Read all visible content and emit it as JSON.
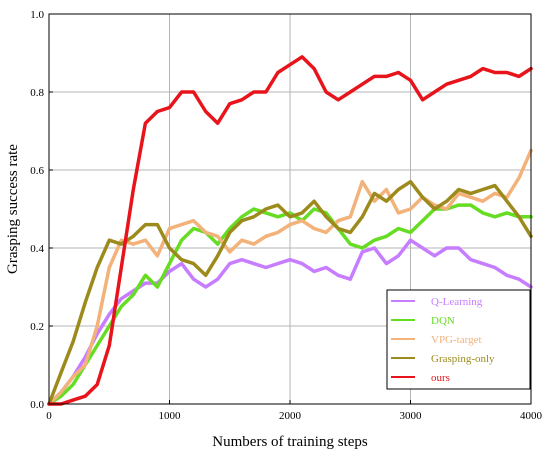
{
  "chart_data": {
    "type": "line",
    "title": "",
    "xlabel": "Numbers of training steps",
    "ylabel": "Grasping success rate",
    "xlim": [
      0,
      4000
    ],
    "ylim": [
      0,
      1.0
    ],
    "xticks": [
      0,
      1000,
      2000,
      3000,
      4000
    ],
    "yticks": [
      0.0,
      0.2,
      0.4,
      0.6,
      0.8,
      1.0
    ],
    "ytick_labels": [
      "0.0",
      "0.2",
      "0.4",
      "0.6",
      "0.8",
      "1.0"
    ],
    "grid": true,
    "legend_position": "bottom-right",
    "x": [
      0,
      100,
      200,
      300,
      400,
      500,
      600,
      700,
      800,
      900,
      1000,
      1100,
      1200,
      1300,
      1400,
      1500,
      1600,
      1700,
      1800,
      1900,
      2000,
      2100,
      2200,
      2300,
      2400,
      2500,
      2600,
      2700,
      2800,
      2900,
      3000,
      3100,
      3200,
      3300,
      3400,
      3500,
      3600,
      3700,
      3800,
      3900,
      4000
    ],
    "series": [
      {
        "name": "Q-Learning",
        "color": "#c77dff",
        "values": [
          0.0,
          0.03,
          0.07,
          0.12,
          0.18,
          0.23,
          0.27,
          0.29,
          0.31,
          0.31,
          0.34,
          0.36,
          0.32,
          0.3,
          0.32,
          0.36,
          0.37,
          0.36,
          0.35,
          0.36,
          0.37,
          0.36,
          0.34,
          0.35,
          0.33,
          0.32,
          0.39,
          0.4,
          0.36,
          0.38,
          0.42,
          0.4,
          0.38,
          0.4,
          0.4,
          0.37,
          0.36,
          0.35,
          0.33,
          0.32,
          0.3
        ]
      },
      {
        "name": "DQN",
        "color": "#66dd22",
        "values": [
          0.0,
          0.02,
          0.05,
          0.1,
          0.15,
          0.2,
          0.25,
          0.28,
          0.33,
          0.3,
          0.36,
          0.42,
          0.45,
          0.44,
          0.41,
          0.45,
          0.48,
          0.5,
          0.49,
          0.48,
          0.49,
          0.47,
          0.5,
          0.49,
          0.45,
          0.41,
          0.4,
          0.42,
          0.43,
          0.45,
          0.44,
          0.47,
          0.5,
          0.5,
          0.51,
          0.51,
          0.49,
          0.48,
          0.49,
          0.48,
          0.48
        ]
      },
      {
        "name": "VPG-target",
        "color": "#f2b27a",
        "values": [
          0.0,
          0.03,
          0.07,
          0.1,
          0.2,
          0.35,
          0.42,
          0.41,
          0.42,
          0.38,
          0.45,
          0.46,
          0.47,
          0.44,
          0.43,
          0.39,
          0.42,
          0.41,
          0.43,
          0.44,
          0.46,
          0.47,
          0.45,
          0.44,
          0.47,
          0.48,
          0.57,
          0.52,
          0.55,
          0.49,
          0.5,
          0.53,
          0.51,
          0.5,
          0.54,
          0.53,
          0.52,
          0.54,
          0.53,
          0.58,
          0.65
        ]
      },
      {
        "name": "Grasping-only",
        "color": "#9c8b1c",
        "values": [
          0.0,
          0.08,
          0.16,
          0.26,
          0.35,
          0.42,
          0.41,
          0.43,
          0.46,
          0.46,
          0.4,
          0.37,
          0.36,
          0.33,
          0.38,
          0.44,
          0.47,
          0.48,
          0.5,
          0.51,
          0.48,
          0.49,
          0.52,
          0.48,
          0.45,
          0.44,
          0.48,
          0.54,
          0.52,
          0.55,
          0.57,
          0.53,
          0.5,
          0.52,
          0.55,
          0.54,
          0.55,
          0.56,
          0.52,
          0.48,
          0.43
        ]
      },
      {
        "name": "ours",
        "color": "#e8141c",
        "values": [
          0.0,
          0.0,
          0.01,
          0.02,
          0.05,
          0.15,
          0.35,
          0.55,
          0.72,
          0.75,
          0.76,
          0.8,
          0.8,
          0.75,
          0.72,
          0.77,
          0.78,
          0.8,
          0.8,
          0.85,
          0.87,
          0.89,
          0.86,
          0.8,
          0.78,
          0.8,
          0.82,
          0.84,
          0.84,
          0.85,
          0.83,
          0.78,
          0.8,
          0.82,
          0.83,
          0.84,
          0.86,
          0.85,
          0.85,
          0.84,
          0.86
        ]
      }
    ]
  }
}
